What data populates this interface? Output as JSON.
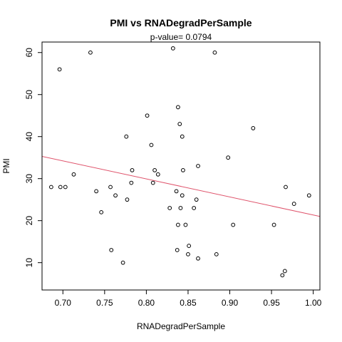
{
  "chart_data": {
    "type": "scatter",
    "title": "PMI  vs  RNADegradPerSample",
    "subtitle": "p-value= 0.0794",
    "xlabel": "RNADegradPerSample",
    "ylabel": "PMI",
    "xlim": [
      0.675,
      1.008
    ],
    "ylim": [
      3.5,
      62.5
    ],
    "xticks": [
      0.7,
      0.75,
      0.8,
      0.85,
      0.9,
      0.95,
      1.0
    ],
    "xtick_labels": [
      "0.70",
      "0.75",
      "0.80",
      "0.85",
      "0.90",
      "0.95",
      "1.00"
    ],
    "yticks": [
      10,
      20,
      30,
      40,
      50,
      60
    ],
    "ytick_labels": [
      "10",
      "20",
      "30",
      "40",
      "50",
      "60"
    ],
    "grid": false,
    "points": [
      {
        "x": 0.686,
        "y": 28
      },
      {
        "x": 0.696,
        "y": 56
      },
      {
        "x": 0.697,
        "y": 28
      },
      {
        "x": 0.703,
        "y": 28
      },
      {
        "x": 0.713,
        "y": 31
      },
      {
        "x": 0.733,
        "y": 60
      },
      {
        "x": 0.74,
        "y": 27
      },
      {
        "x": 0.746,
        "y": 22
      },
      {
        "x": 0.757,
        "y": 28
      },
      {
        "x": 0.758,
        "y": 13
      },
      {
        "x": 0.763,
        "y": 26
      },
      {
        "x": 0.772,
        "y": 10
      },
      {
        "x": 0.776,
        "y": 40
      },
      {
        "x": 0.777,
        "y": 25
      },
      {
        "x": 0.782,
        "y": 29
      },
      {
        "x": 0.783,
        "y": 32
      },
      {
        "x": 0.801,
        "y": 45
      },
      {
        "x": 0.806,
        "y": 38
      },
      {
        "x": 0.808,
        "y": 29
      },
      {
        "x": 0.81,
        "y": 32
      },
      {
        "x": 0.814,
        "y": 31
      },
      {
        "x": 0.828,
        "y": 23
      },
      {
        "x": 0.832,
        "y": 61
      },
      {
        "x": 0.836,
        "y": 27
      },
      {
        "x": 0.837,
        "y": 13
      },
      {
        "x": 0.838,
        "y": 47
      },
      {
        "x": 0.838,
        "y": 19
      },
      {
        "x": 0.84,
        "y": 43
      },
      {
        "x": 0.841,
        "y": 23
      },
      {
        "x": 0.843,
        "y": 40
      },
      {
        "x": 0.843,
        "y": 26
      },
      {
        "x": 0.844,
        "y": 32
      },
      {
        "x": 0.847,
        "y": 19
      },
      {
        "x": 0.85,
        "y": 12
      },
      {
        "x": 0.851,
        "y": 14
      },
      {
        "x": 0.857,
        "y": 23
      },
      {
        "x": 0.86,
        "y": 25
      },
      {
        "x": 0.862,
        "y": 33
      },
      {
        "x": 0.862,
        "y": 11
      },
      {
        "x": 0.882,
        "y": 60
      },
      {
        "x": 0.884,
        "y": 12
      },
      {
        "x": 0.898,
        "y": 35
      },
      {
        "x": 0.904,
        "y": 19
      },
      {
        "x": 0.928,
        "y": 42
      },
      {
        "x": 0.953,
        "y": 19
      },
      {
        "x": 0.963,
        "y": 7
      },
      {
        "x": 0.966,
        "y": 8
      },
      {
        "x": 0.967,
        "y": 28
      },
      {
        "x": 0.977,
        "y": 24
      },
      {
        "x": 0.995,
        "y": 26
      }
    ],
    "fit_line": {
      "x": [
        0.675,
        1.008
      ],
      "y": [
        35.3,
        21.0
      ],
      "color": "#DF536B"
    },
    "point_color": "#000000"
  }
}
